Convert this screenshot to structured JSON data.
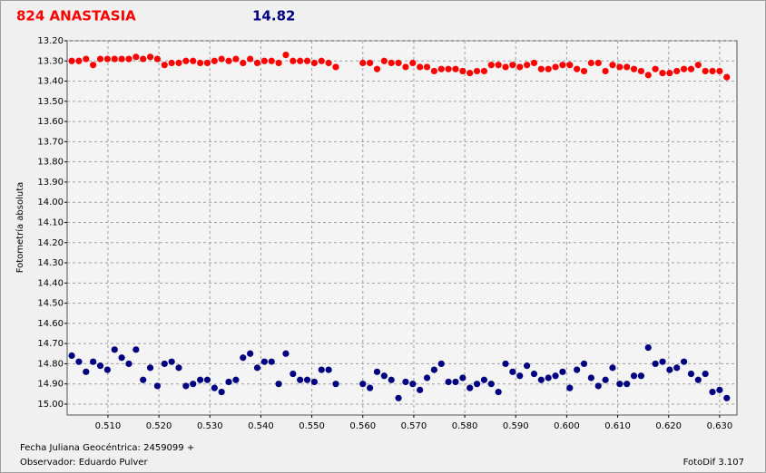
{
  "chart_data": {
    "type": "scatter",
    "title": "824 ANASTASIA",
    "subtitle": "14.82",
    "y_label": "Fotometría absoluta",
    "x_label": "Fecha Juliana Geocéntrica: 2459099 +",
    "observer": "Observador: Eduardo Pulver",
    "software": "FotoDif 3.107",
    "inverted_y": true,
    "grid": true,
    "xlim": [
      0.502,
      0.6334
    ],
    "ylim": [
      13.2,
      15.054
    ],
    "xticks": [
      {
        "value": 0.51,
        "label": "0.510"
      },
      {
        "value": 0.52,
        "label": "0.520"
      },
      {
        "value": 0.53,
        "label": "0.530"
      },
      {
        "value": 0.54,
        "label": "0.540"
      },
      {
        "value": 0.55,
        "label": "0.550"
      },
      {
        "value": 0.56,
        "label": "0.560"
      },
      {
        "value": 0.57,
        "label": "0.570"
      },
      {
        "value": 0.58,
        "label": "0.580"
      },
      {
        "value": 0.59,
        "label": "0.590"
      },
      {
        "value": 0.6,
        "label": "0.600"
      },
      {
        "value": 0.61,
        "label": "0.610"
      },
      {
        "value": 0.62,
        "label": "0.620"
      },
      {
        "value": 0.63,
        "label": "0.630"
      }
    ],
    "yticks": [
      {
        "value": 13.2,
        "label": "13.20"
      },
      {
        "value": 13.3,
        "label": "13.30"
      },
      {
        "value": 13.4,
        "label": "13.40"
      },
      {
        "value": 13.5,
        "label": "13.50"
      },
      {
        "value": 13.6,
        "label": "13.60"
      },
      {
        "value": 13.7,
        "label": "13.70"
      },
      {
        "value": 13.8,
        "label": "13.80"
      },
      {
        "value": 13.9,
        "label": "13.90"
      },
      {
        "value": 14.0,
        "label": "14.00"
      },
      {
        "value": 14.1,
        "label": "14.10"
      },
      {
        "value": 14.2,
        "label": "14.20"
      },
      {
        "value": 14.3,
        "label": "14.30"
      },
      {
        "value": 14.4,
        "label": "14.40"
      },
      {
        "value": 14.5,
        "label": "14.50"
      },
      {
        "value": 14.6,
        "label": "14.60"
      },
      {
        "value": 14.7,
        "label": "14.70"
      },
      {
        "value": 14.8,
        "label": "14.80"
      },
      {
        "value": 14.9,
        "label": "14.90"
      },
      {
        "value": 15.0,
        "label": "15.00"
      }
    ],
    "x": [
      0.5029,
      0.5043,
      0.5057,
      0.5071,
      0.5085,
      0.5099,
      0.5113,
      0.5127,
      0.5141,
      0.5155,
      0.5169,
      0.5183,
      0.5197,
      0.5211,
      0.5225,
      0.5239,
      0.5253,
      0.5267,
      0.5281,
      0.5295,
      0.5309,
      0.5323,
      0.5337,
      0.5351,
      0.5365,
      0.5379,
      0.5393,
      0.5407,
      0.5421,
      0.5435,
      0.5449,
      0.5463,
      0.5477,
      0.5491,
      0.5505,
      0.5519,
      0.5533,
      0.5547,
      0.56,
      0.5614,
      0.5628,
      0.5642,
      0.5656,
      0.567,
      0.5684,
      0.5698,
      0.5712,
      0.5726,
      0.574,
      0.5754,
      0.5768,
      0.5782,
      0.5796,
      0.581,
      0.5824,
      0.5838,
      0.5852,
      0.5866,
      0.588,
      0.5894,
      0.5908,
      0.5922,
      0.5936,
      0.595,
      0.5964,
      0.5978,
      0.5992,
      0.6006,
      0.602,
      0.6034,
      0.6048,
      0.6062,
      0.6076,
      0.609,
      0.6104,
      0.6118,
      0.6132,
      0.6146,
      0.616,
      0.6174,
      0.6188,
      0.6202,
      0.6216,
      0.623,
      0.6244,
      0.6258,
      0.6272,
      0.6286,
      0.63,
      0.6314
    ],
    "series": [
      {
        "color": "#ff0000",
        "values": [
          13.3,
          13.3,
          13.29,
          13.32,
          13.29,
          13.29,
          13.29,
          13.29,
          13.29,
          13.28,
          13.29,
          13.28,
          13.29,
          13.32,
          13.31,
          13.31,
          13.3,
          13.3,
          13.31,
          13.31,
          13.3,
          13.29,
          13.3,
          13.29,
          13.31,
          13.29,
          13.31,
          13.3,
          13.3,
          13.31,
          13.27,
          13.3,
          13.3,
          13.3,
          13.31,
          13.3,
          13.31,
          13.33,
          13.31,
          13.31,
          13.34,
          13.3,
          13.31,
          13.31,
          13.33,
          13.31,
          13.33,
          13.33,
          13.35,
          13.34,
          13.34,
          13.34,
          13.35,
          13.36,
          13.35,
          13.35,
          13.32,
          13.32,
          13.33,
          13.32,
          13.33,
          13.32,
          13.31,
          13.34,
          13.34,
          13.33,
          13.32,
          13.32,
          13.34,
          13.35,
          13.31,
          13.31,
          13.35,
          13.32,
          13.33,
          13.33,
          13.34,
          13.35,
          13.37,
          13.34,
          13.36,
          13.36,
          13.35,
          13.34,
          13.34,
          13.32,
          13.35,
          13.35,
          13.35,
          13.38
        ]
      },
      {
        "color": "#000080",
        "values": [
          14.76,
          14.79,
          14.84,
          14.79,
          14.81,
          14.83,
          14.73,
          14.77,
          14.8,
          14.73,
          14.88,
          14.82,
          14.91,
          14.8,
          14.79,
          14.82,
          14.91,
          14.9,
          14.88,
          14.88,
          14.92,
          14.94,
          14.89,
          14.88,
          14.77,
          14.75,
          14.82,
          14.79,
          14.79,
          14.9,
          14.75,
          14.85,
          14.88,
          14.88,
          14.89,
          14.83,
          14.83,
          14.9,
          14.9,
          14.92,
          14.84,
          14.86,
          14.88,
          14.97,
          14.89,
          14.9,
          14.93,
          14.87,
          14.83,
          14.8,
          14.89,
          14.89,
          14.87,
          14.92,
          14.9,
          14.88,
          14.9,
          14.94,
          14.8,
          14.84,
          14.86,
          14.81,
          14.85,
          14.88,
          14.87,
          14.86,
          14.84,
          14.92,
          14.83,
          14.8,
          14.87,
          14.91,
          14.88,
          14.82,
          14.9,
          14.9,
          14.86,
          14.86,
          14.72,
          14.8,
          14.79,
          14.83,
          14.82,
          14.79,
          14.85,
          14.88,
          14.85,
          14.94,
          14.93,
          14.97
        ]
      }
    ]
  }
}
